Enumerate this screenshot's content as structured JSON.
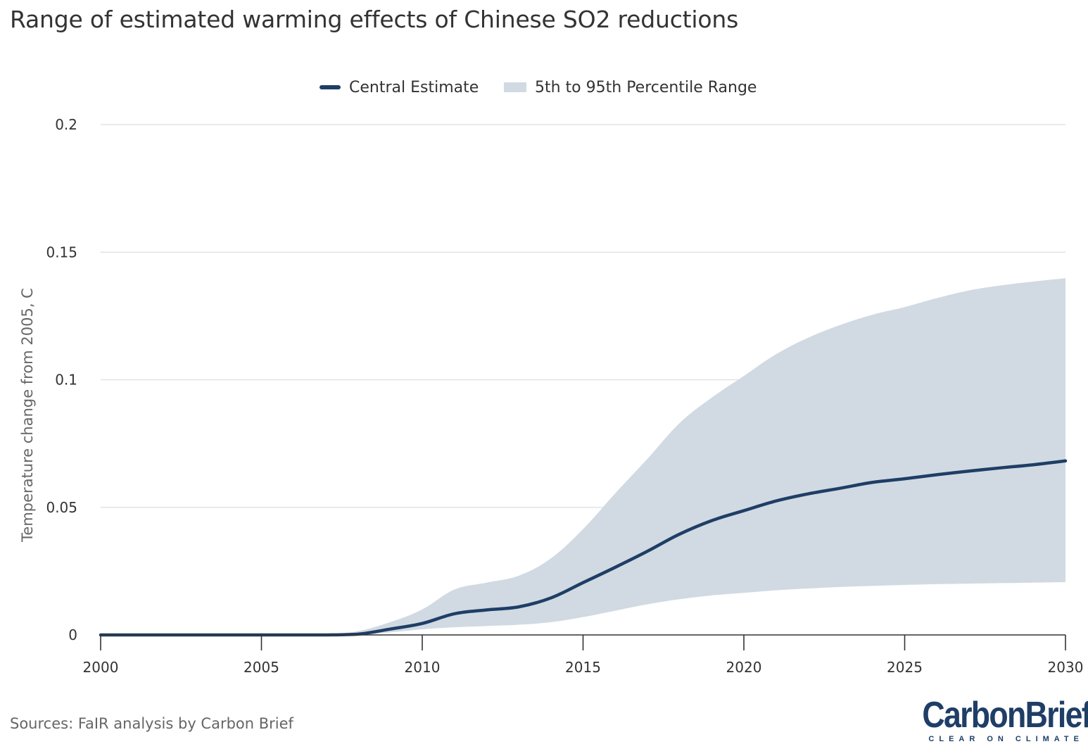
{
  "title": "Range of estimated warming effects of Chinese SO2 reductions",
  "legend": {
    "central_label": "Central Estimate",
    "range_label": "5th to 95th Percentile Range"
  },
  "colors": {
    "central": "#1f3e66",
    "range": "#d1dae2",
    "grid": "#dddddd",
    "axis": "#333333"
  },
  "source": "Sources: FaIR analysis by Carbon Brief",
  "logo": {
    "brand": "CarbonBrief",
    "tagline": "CLEAR ON CLIMATE"
  },
  "chart_data": {
    "type": "area",
    "title": "Range of estimated warming effects of Chinese SO2 reductions",
    "xlabel": "",
    "ylabel": "Temperature change from 2005, C",
    "xlim": [
      2000,
      2030
    ],
    "ylim": [
      0,
      0.2
    ],
    "x_ticks": [
      2000,
      2005,
      2010,
      2015,
      2020,
      2025,
      2030
    ],
    "y_ticks": [
      0,
      0.05,
      0.1,
      0.15,
      0.2
    ],
    "y_tick_labels": [
      "0",
      "0.05",
      "0.1",
      "0.15",
      "0.2"
    ],
    "grid": true,
    "legend_position": "top-center",
    "x": [
      2000,
      2001,
      2002,
      2003,
      2004,
      2005,
      2006,
      2007,
      2008,
      2009,
      2010,
      2011,
      2012,
      2013,
      2014,
      2015,
      2016,
      2017,
      2018,
      2019,
      2020,
      2021,
      2022,
      2023,
      2024,
      2025,
      2026,
      2027,
      2028,
      2029,
      2030
    ],
    "series": [
      {
        "name": "Central Estimate",
        "type": "line",
        "values": [
          0,
          0,
          0,
          0,
          0,
          0,
          0,
          0,
          0.0003,
          0.0023,
          0.0045,
          0.0083,
          0.0098,
          0.011,
          0.0145,
          0.0205,
          0.0265,
          0.0328,
          0.0395,
          0.0448,
          0.0487,
          0.0525,
          0.0553,
          0.0575,
          0.0598,
          0.0612,
          0.0628,
          0.0642,
          0.0655,
          0.0667,
          0.0682
        ]
      },
      {
        "name": "5th to 95th Percentile Range",
        "type": "range",
        "lower": [
          0,
          0,
          0,
          0,
          0,
          0,
          0,
          0,
          0,
          0.001,
          0.0022,
          0.003,
          0.0035,
          0.004,
          0.005,
          0.007,
          0.0095,
          0.012,
          0.014,
          0.0155,
          0.0165,
          0.0175,
          0.0182,
          0.0188,
          0.0192,
          0.0196,
          0.0199,
          0.0201,
          0.0203,
          0.0205,
          0.0207
        ],
        "upper": [
          0,
          0,
          0,
          0,
          0,
          0,
          0,
          0.0003,
          0.0015,
          0.005,
          0.01,
          0.0178,
          0.0205,
          0.0232,
          0.03,
          0.0415,
          0.0555,
          0.069,
          0.083,
          0.093,
          0.1015,
          0.11,
          0.1165,
          0.1215,
          0.1255,
          0.1285,
          0.132,
          0.135,
          0.137,
          0.1385,
          0.1398
        ]
      }
    ]
  }
}
